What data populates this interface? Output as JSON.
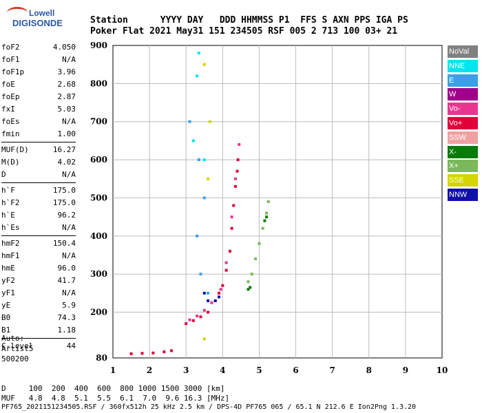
{
  "logo": {
    "line1": "Lowell",
    "line2": "DIGISONDE"
  },
  "header": {
    "line1": "Station      YYYY DAY   DDD HHMMSS P1  FFS S AXN PPS IGA PS",
    "line2": "Poker Flat 2021 May31 151 234505 RSF 005 2 713 100 03+ 21"
  },
  "params": [
    [
      [
        "foF2",
        "4.050"
      ],
      [
        "foF1",
        "N/A"
      ],
      [
        "foF1p",
        "3.96"
      ],
      [
        "foE",
        "2.68"
      ],
      [
        "foEp",
        "2.87"
      ],
      [
        "fxI",
        "5.03"
      ],
      [
        "foEs",
        "N/A"
      ],
      [
        "fmin",
        "1.00"
      ]
    ],
    [
      [
        "MUF(D)",
        "16.27"
      ],
      [
        "M(D)",
        "4.02"
      ],
      [
        "D",
        "N/A"
      ]
    ],
    [
      [
        "h`F",
        "175.0"
      ],
      [
        "h`F2",
        "175.0"
      ],
      [
        "h`E",
        "96.2"
      ],
      [
        "h`Es",
        "N/A"
      ]
    ],
    [
      [
        "hmF2",
        "150.4"
      ],
      [
        "hmF1",
        "N/A"
      ],
      [
        "hmE",
        "96.0"
      ],
      [
        "yF2",
        "41.7"
      ],
      [
        "yF1",
        "N/A"
      ],
      [
        "yE",
        "5.9"
      ],
      [
        "B0",
        "74.3"
      ],
      [
        "B1",
        "1.18"
      ]
    ],
    [
      [
        "C-level",
        "44"
      ]
    ]
  ],
  "auto": {
    "l1": "Auto:",
    "l2": "Artist5",
    "l3": "500200"
  },
  "legend": [
    {
      "label": "NoVal",
      "color": "#808080"
    },
    {
      "label": "NNE",
      "color": "#00e5ee"
    },
    {
      "label": "E",
      "color": "#3aa0e8"
    },
    {
      "label": "W",
      "color": "#a0008c"
    },
    {
      "label": "Vo-",
      "color": "#e8368f"
    },
    {
      "label": "Vo+",
      "color": "#e0003a"
    },
    {
      "label": "SSW",
      "color": "#f0a0a0"
    },
    {
      "label": "X-",
      "color": "#087a08"
    },
    {
      "label": "X+",
      "color": "#7ab85a"
    },
    {
      "label": "SSE",
      "color": "#d4d400"
    },
    {
      "label": "NNW",
      "color": "#1010a8"
    }
  ],
  "footer": {
    "line1": "D     100  200  400  600  800 1000 1500 3000 [km]",
    "line2": "MUF   4.8  4.8  5.1  5.5  6.1  7.0  9.6 16.3 [MHz]",
    "line3": "PF765_2021151234505.RSF / 360fx512h 25 kHz 2.5 km / DPS-4D PF765 065 / 65.1 N 212.6 E Ion2Png 1.3.20"
  },
  "chart_data": {
    "type": "scatter",
    "xlim": [
      1,
      10
    ],
    "ylim": [
      80,
      900
    ],
    "xticks": [
      1,
      2,
      3,
      4,
      5,
      6,
      7,
      8,
      9,
      10
    ],
    "yticks": [
      80,
      200,
      300,
      400,
      500,
      600,
      700,
      800,
      900
    ],
    "grid": true,
    "series": [
      {
        "name": "Vo+",
        "color": "#e0003a",
        "points": [
          [
            1.5,
            91
          ],
          [
            1.8,
            92
          ],
          [
            2.1,
            93
          ],
          [
            2.4,
            96
          ],
          [
            2.6,
            99
          ],
          [
            3.0,
            170
          ],
          [
            3.2,
            178
          ],
          [
            3.4,
            188
          ],
          [
            3.6,
            200
          ],
          [
            3.8,
            230
          ],
          [
            3.9,
            250
          ],
          [
            4.0,
            270
          ],
          [
            4.1,
            310
          ],
          [
            4.2,
            360
          ],
          [
            4.25,
            420
          ],
          [
            4.3,
            480
          ],
          [
            4.35,
            530
          ],
          [
            4.4,
            570
          ],
          [
            4.42,
            600
          ]
        ]
      },
      {
        "name": "Vo-",
        "color": "#e8368f",
        "points": [
          [
            3.1,
            180
          ],
          [
            3.3,
            190
          ],
          [
            3.5,
            205
          ],
          [
            3.7,
            225
          ],
          [
            3.95,
            260
          ],
          [
            4.1,
            330
          ],
          [
            4.25,
            450
          ],
          [
            4.35,
            550
          ],
          [
            4.45,
            640
          ]
        ]
      },
      {
        "name": "X+",
        "color": "#7ab85a",
        "points": [
          [
            4.7,
            280
          ],
          [
            4.8,
            300
          ],
          [
            4.9,
            340
          ],
          [
            5.0,
            380
          ],
          [
            5.1,
            420
          ],
          [
            5.2,
            460
          ],
          [
            5.25,
            490
          ]
        ]
      },
      {
        "name": "X-",
        "color": "#087a08",
        "points": [
          [
            4.7,
            260
          ],
          [
            4.75,
            265
          ],
          [
            5.15,
            440
          ],
          [
            5.2,
            450
          ]
        ]
      },
      {
        "name": "NNE",
        "color": "#00e5ee",
        "points": [
          [
            3.2,
            650
          ],
          [
            3.3,
            820
          ],
          [
            3.35,
            880
          ],
          [
            3.5,
            600
          ]
        ]
      },
      {
        "name": "E",
        "color": "#3aa0e8",
        "points": [
          [
            3.1,
            700
          ],
          [
            3.3,
            400
          ],
          [
            3.35,
            600
          ],
          [
            3.4,
            300
          ],
          [
            3.5,
            500
          ],
          [
            3.6,
            250
          ]
        ]
      },
      {
        "name": "SSE",
        "color": "#d4d400",
        "points": [
          [
            3.5,
            130
          ],
          [
            3.6,
            550
          ],
          [
            3.65,
            700
          ],
          [
            3.5,
            850
          ]
        ]
      },
      {
        "name": "NNW",
        "color": "#1010a8",
        "points": [
          [
            3.5,
            250
          ],
          [
            3.6,
            230
          ],
          [
            3.8,
            230
          ],
          [
            3.9,
            240
          ]
        ]
      }
    ]
  }
}
